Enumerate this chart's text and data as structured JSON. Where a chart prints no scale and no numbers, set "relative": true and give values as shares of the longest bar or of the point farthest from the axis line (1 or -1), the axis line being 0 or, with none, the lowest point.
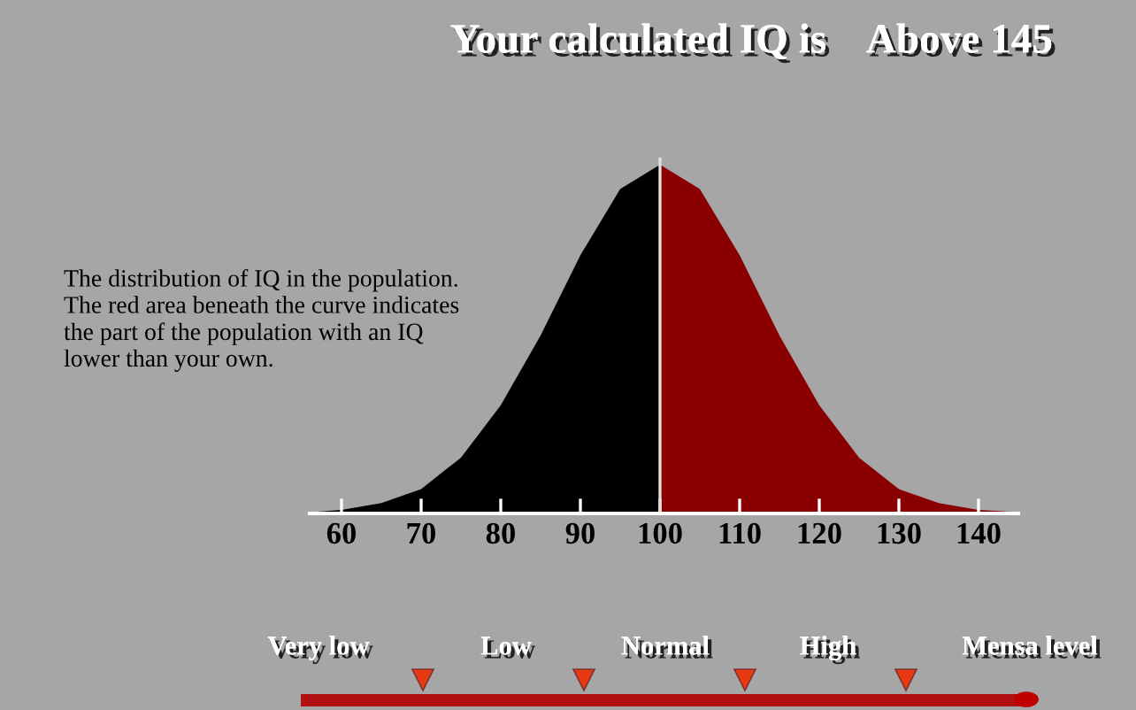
{
  "chart_data": {
    "type": "area",
    "title": "Your calculated IQ is    Above 145",
    "relative": true,
    "tick_labels": "x",
    "grid": false,
    "xlim": [
      56,
      145
    ],
    "xticks": [
      60,
      70,
      80,
      90,
      100,
      110,
      120,
      130,
      140
    ],
    "series": [
      {
        "color": "#000000",
        "x": [
          57,
          60,
          65,
          70,
          75,
          80,
          85,
          90,
          95,
          100
        ],
        "values": [
          0.005,
          0.01,
          0.03,
          0.07,
          0.16,
          0.31,
          0.51,
          0.74,
          0.93,
          1
        ]
      },
      {
        "color": "#8a0000",
        "x": [
          100,
          105,
          110,
          115,
          120,
          125,
          130,
          135,
          140,
          144
        ],
        "values": [
          1,
          0.93,
          0.74,
          0.51,
          0.31,
          0.16,
          0.07,
          0.03,
          0.01,
          0.005
        ]
      }
    ],
    "ref_lines": [
      {
        "axis": "x",
        "value": 100,
        "color": "#e0e0e0"
      }
    ],
    "annotations": [
      "The distribution of IQ in the population.\nThe red area beneath the curve indicates\nthe part of the population with an IQ\nlower than your own.",
      "Very low",
      "Low",
      "Normal",
      "High",
      "Mensa level"
    ]
  }
}
